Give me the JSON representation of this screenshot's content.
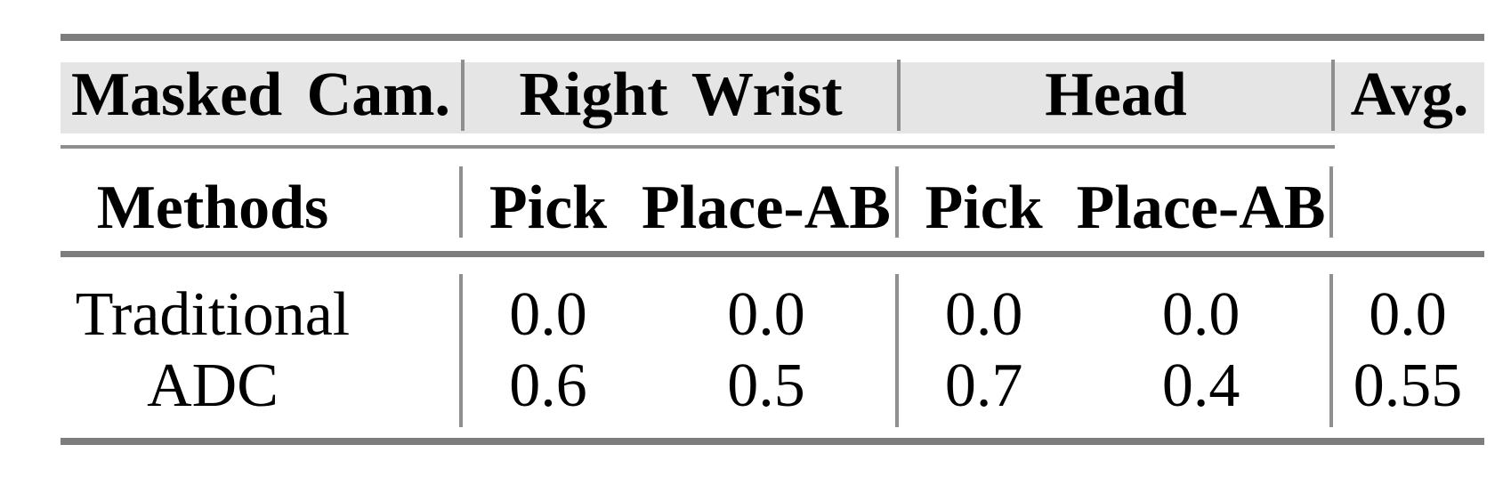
{
  "colors": {
    "page_bg": "#ffffff",
    "rule_thick_gray": "#7d7d7d",
    "rule_thin_gray": "#8f8f8f",
    "header_band_bg": "#e5e5e5",
    "text": "#000000"
  },
  "table": {
    "header_row1": {
      "masked_cam": "Masked Cam.",
      "right_wrist": "Right Wrist",
      "head": "Head",
      "avg": "Avg."
    },
    "header_row2": {
      "methods": "Methods",
      "wrist_pick": "Pick",
      "wrist_place": "Place-AB",
      "head_pick": "Pick",
      "head_place": "Place-AB"
    },
    "rows": [
      {
        "method": "Traditional",
        "wrist_pick": "0.0",
        "wrist_place": "0.0",
        "head_pick": "0.0",
        "head_place": "0.0",
        "avg": "0.0"
      },
      {
        "method": "ADC",
        "wrist_pick": "0.6",
        "wrist_place": "0.5",
        "head_pick": "0.7",
        "head_place": "0.4",
        "avg": "0.55"
      }
    ]
  },
  "chart_data": {
    "type": "table",
    "columns": [
      "Masked Cam. / Methods",
      "Right Wrist Pick",
      "Right Wrist Place-AB",
      "Head Pick",
      "Head Place-AB",
      "Avg."
    ],
    "rows": [
      [
        "Traditional",
        0.0,
        0.0,
        0.0,
        0.0,
        0.0
      ],
      [
        "ADC",
        0.6,
        0.5,
        0.7,
        0.4,
        0.55
      ]
    ]
  }
}
